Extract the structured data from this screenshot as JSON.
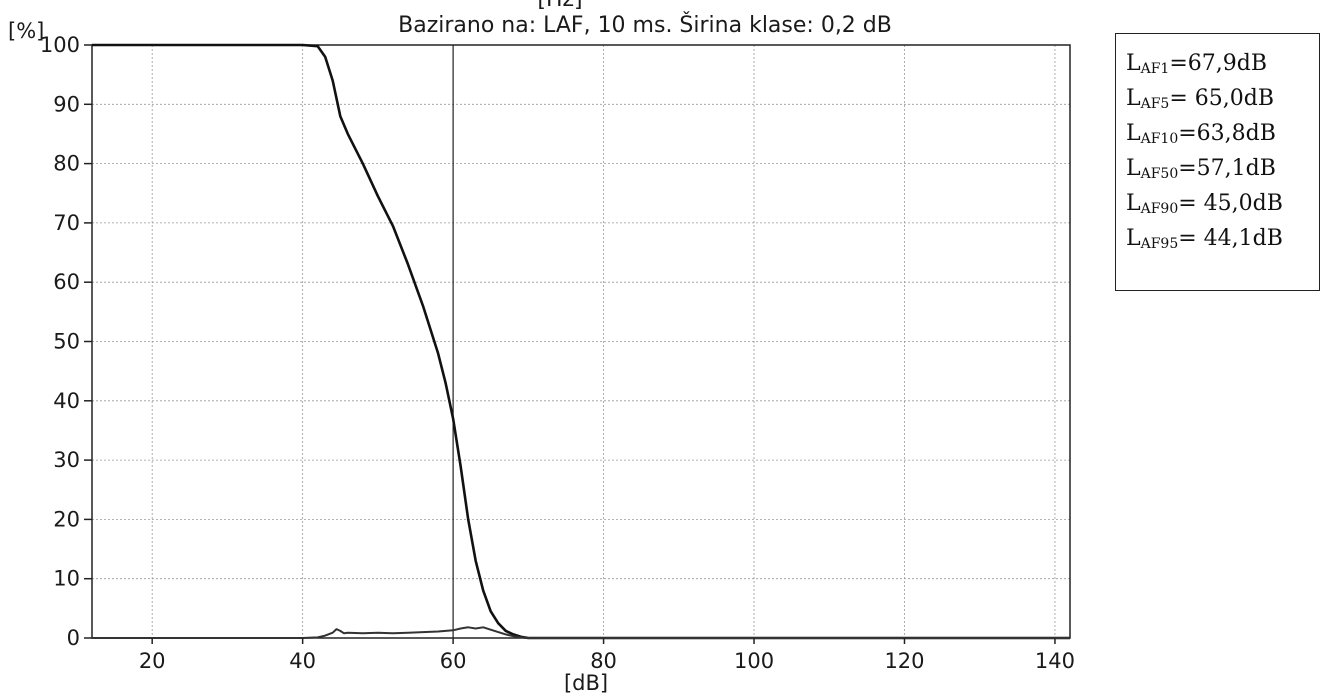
{
  "chart_data": {
    "type": "line",
    "title_top_partial": "[Hz]",
    "title": "Bazirano na: LAF, 10 ms. Širina klase: 0,2 dB",
    "xlabel": "[dB]",
    "ylabel": "[%]",
    "xlim": [
      12,
      142
    ],
    "ylim": [
      0,
      100
    ],
    "x_ticks": [
      20,
      40,
      60,
      80,
      100,
      120,
      140
    ],
    "x_tick_labels": [
      "20",
      "40",
      "60",
      "80",
      "100",
      "120",
      "140"
    ],
    "y_ticks": [
      0,
      10,
      20,
      30,
      40,
      50,
      60,
      70,
      80,
      90,
      100
    ],
    "y_tick_labels": [
      "0",
      "10",
      "20",
      "30",
      "40",
      "50",
      "60",
      "70",
      "80",
      "90",
      "100"
    ],
    "grid": true,
    "marker_line_x": 60,
    "series": [
      {
        "role": "cumulative",
        "color": "#111111",
        "x": [
          12,
          40,
          42,
          43,
          44,
          45,
          46,
          48,
          50,
          52,
          54,
          56,
          58,
          59,
          60,
          61,
          62,
          63,
          64,
          65,
          66,
          67,
          68,
          69,
          70,
          72,
          142
        ],
        "y": [
          100,
          100,
          99.8,
          98,
          94,
          88,
          85,
          80,
          74.5,
          69.5,
          63,
          56,
          48,
          43,
          37,
          29,
          20,
          13,
          8,
          4.5,
          2.5,
          1.2,
          0.6,
          0.2,
          0,
          0,
          0
        ]
      },
      {
        "role": "distribution",
        "color": "#333333",
        "x": [
          12,
          40,
          42,
          43,
          44,
          44.5,
          45,
          45.5,
          46,
          48,
          50,
          52,
          54,
          56,
          58,
          60,
          61,
          62,
          63,
          64,
          65,
          66,
          67,
          68,
          69,
          70,
          72,
          142
        ],
        "y": [
          0,
          0,
          0.1,
          0.4,
          0.9,
          1.5,
          1.2,
          0.8,
          0.9,
          0.8,
          0.9,
          0.8,
          0.9,
          1.0,
          1.1,
          1.3,
          1.6,
          1.8,
          1.6,
          1.8,
          1.4,
          1.0,
          0.6,
          0.3,
          0.1,
          0,
          0,
          0
        ]
      }
    ]
  },
  "legend": {
    "items": [
      {
        "prefix": "L",
        "sub": "AF1",
        "value": "=67,9dB"
      },
      {
        "prefix": "L",
        "sub": "AF5",
        "value": "= 65,0dB"
      },
      {
        "prefix": "L",
        "sub": "AF10",
        "value": "=63,8dB"
      },
      {
        "prefix": "L",
        "sub": "AF50",
        "value": "=57,1dB"
      },
      {
        "prefix": "L",
        "sub": "AF90",
        "value": "= 45,0dB"
      },
      {
        "prefix": "L",
        "sub": "AF95",
        "value": "= 44,1dB"
      }
    ]
  }
}
